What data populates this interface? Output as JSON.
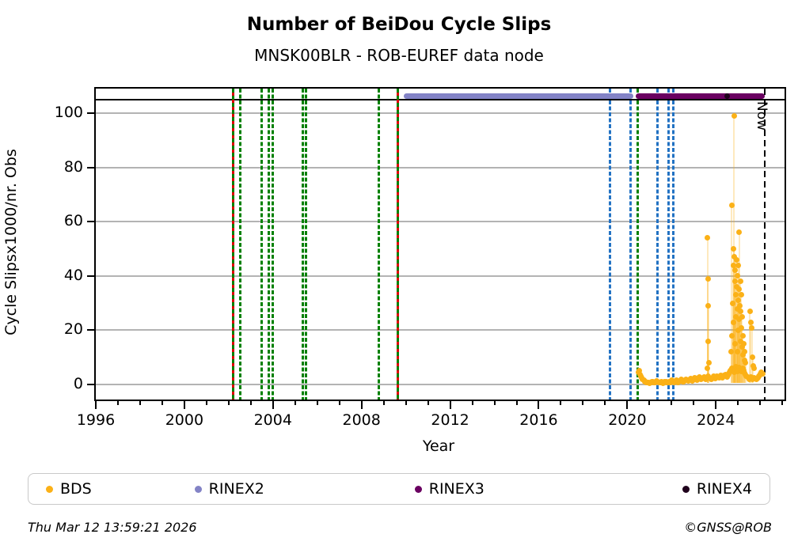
{
  "title": "Number of BeiDou Cycle Slips",
  "subtitle": "MNSK00BLR - ROB-EUREF data node",
  "footer": {
    "timestamp": "Thu Mar 12 13:59:21 2026",
    "credit": "©GNSS@ROB"
  },
  "legend": [
    {
      "label": "BDS",
      "color": "#fbb117"
    },
    {
      "label": "RINEX2",
      "color": "#8383c6"
    },
    {
      "label": "RINEX3",
      "color": "#6a0061"
    },
    {
      "label": "RINEX4",
      "color": "#1f001c"
    }
  ],
  "colors": {
    "bds_orange": "#fbb117",
    "event_green": "#008000",
    "event_red": "#dd0000",
    "event_blue": "#2272c3",
    "now_black": "#000000",
    "grid_gray": "#b3b3b3",
    "rinex2": "#8383c6",
    "rinex3": "#6a0061",
    "rinex4": "#1f001c"
  },
  "chart_data": {
    "type": "scatter",
    "title": "Number of BeiDou Cycle Slips",
    "subtitle": "MNSK00BLR - ROB-EUREF data node",
    "xlabel": "Year",
    "ylabel": "Cycle Slipsx1000/nr. Obs",
    "xlim": [
      1996,
      2027.1
    ],
    "ylim": [
      -5.5,
      109
    ],
    "x_major_ticks": [
      1996,
      2000,
      2004,
      2008,
      2012,
      2016,
      2020,
      2024
    ],
    "x_minor_tick_step": 1,
    "y_ticks": [
      0,
      20,
      40,
      60,
      80,
      100
    ],
    "grid": "horizontal",
    "top_rule_value": 105,
    "now_line": {
      "year": 2026.19,
      "label": "Now"
    },
    "bars": [
      {
        "name": "RINEX2",
        "start": 2009.92,
        "end": 2020.28,
        "color": "#8383c6"
      },
      {
        "name": "RINEX3",
        "start": 2020.38,
        "end": 2026.19,
        "color": "#6a0061"
      },
      {
        "name": "RINEX4",
        "start": 2024.4,
        "end": 2024.62,
        "color": "#1f001c"
      }
    ],
    "event_lines": {
      "red_green_dashed": [
        2002.19,
        2009.65
      ],
      "green_dashed": [
        2002.54,
        2003.48,
        2003.82,
        2003.98,
        2005.33,
        2005.48,
        2008.77,
        2020.46
      ],
      "blue_dashed": [
        2019.2,
        2020.16,
        2021.35,
        2021.87,
        2022.09
      ]
    },
    "series": [
      {
        "name": "BDS baseline band",
        "encoding": "start_step",
        "start": 2020.5,
        "step": 0.04,
        "values": [
          4.5,
          5.2,
          3.8,
          3.0,
          2.4,
          2.0,
          1.6,
          1.2,
          1.0,
          0.8,
          0.8,
          0.9,
          0.7,
          0.6,
          0.8,
          1.0,
          1.2,
          0.9,
          0.7,
          0.8,
          1.1,
          1.3,
          1.0,
          0.8,
          0.7,
          0.9,
          1.1,
          0.8,
          0.6,
          0.8,
          1.0,
          1.2,
          0.9,
          0.7,
          0.8,
          1.0,
          0.8,
          1.2,
          1.5,
          1.1,
          0.9,
          1.0,
          1.3,
          1.6,
          1.2,
          0.9,
          1.1,
          1.4,
          1.8,
          1.5,
          1.2,
          1.0,
          1.3,
          1.7,
          2.0,
          1.6,
          1.3,
          1.5,
          1.9,
          2.2,
          1.8,
          1.4,
          1.6,
          2.0,
          2.4,
          2.0,
          1.7,
          2.1,
          2.5,
          2.8,
          2.3,
          1.9,
          2.2,
          2.6,
          2.9,
          2.4,
          2.0,
          2.3,
          2.7,
          3.0,
          2.5,
          2.1,
          1.8,
          2.2,
          2.6,
          3.0,
          2.5,
          2.2,
          2.8,
          3.2,
          2.7,
          2.4,
          2.9,
          3.3,
          2.8,
          2.5,
          3.0,
          3.4,
          3.8,
          3.3,
          2.9,
          3.5,
          4.0,
          4.5,
          5.0,
          5.5,
          6.0,
          5.2,
          4.6,
          5.8,
          6.5,
          5.5,
          4.8,
          5.6,
          6.2,
          5.4,
          4.7,
          5.3,
          6.0,
          5.1,
          4.4,
          3.8,
          3.2,
          2.8,
          2.4,
          2.0,
          2.3,
          2.7,
          2.2,
          1.9,
          2.2,
          2.6,
          2.1,
          1.8,
          2.1,
          2.5,
          3.0,
          3.5,
          4.0,
          4.6,
          3.9
        ]
      },
      {
        "name": "BDS slip events",
        "encoding": "points",
        "points": [
          [
            2023.6,
            6
          ],
          [
            2023.62,
            54
          ],
          [
            2023.64,
            39
          ],
          [
            2023.64,
            16
          ],
          [
            2023.66,
            29
          ],
          [
            2023.68,
            8
          ],
          [
            2024.7,
            12
          ],
          [
            2024.72,
            66
          ],
          [
            2024.74,
            18
          ],
          [
            2024.76,
            30
          ],
          [
            2024.78,
            44
          ],
          [
            2024.8,
            50
          ],
          [
            2024.8,
            23
          ],
          [
            2024.82,
            99
          ],
          [
            2024.84,
            47
          ],
          [
            2024.86,
            38
          ],
          [
            2024.86,
            15
          ],
          [
            2024.88,
            42
          ],
          [
            2024.9,
            33
          ],
          [
            2024.9,
            25
          ],
          [
            2024.92,
            46
          ],
          [
            2024.94,
            36
          ],
          [
            2024.96,
            28
          ],
          [
            2024.96,
            12
          ],
          [
            2024.98,
            40
          ],
          [
            2025.0,
            31
          ],
          [
            2025.0,
            20
          ],
          [
            2025.02,
            44
          ],
          [
            2025.04,
            35
          ],
          [
            2025.06,
            56
          ],
          [
            2025.06,
            24
          ],
          [
            2025.08,
            29
          ],
          [
            2025.1,
            38
          ],
          [
            2025.1,
            16
          ],
          [
            2025.12,
            27
          ],
          [
            2025.14,
            33
          ],
          [
            2025.16,
            21
          ],
          [
            2025.18,
            25
          ],
          [
            2025.2,
            14
          ],
          [
            2025.22,
            18
          ],
          [
            2025.24,
            11
          ],
          [
            2025.26,
            15
          ],
          [
            2025.28,
            9
          ],
          [
            2025.3,
            12
          ],
          [
            2025.34,
            8
          ],
          [
            2025.54,
            27
          ],
          [
            2025.58,
            23
          ],
          [
            2025.62,
            21
          ],
          [
            2025.66,
            10
          ],
          [
            2025.7,
            7
          ],
          [
            2025.74,
            6
          ]
        ]
      }
    ]
  }
}
